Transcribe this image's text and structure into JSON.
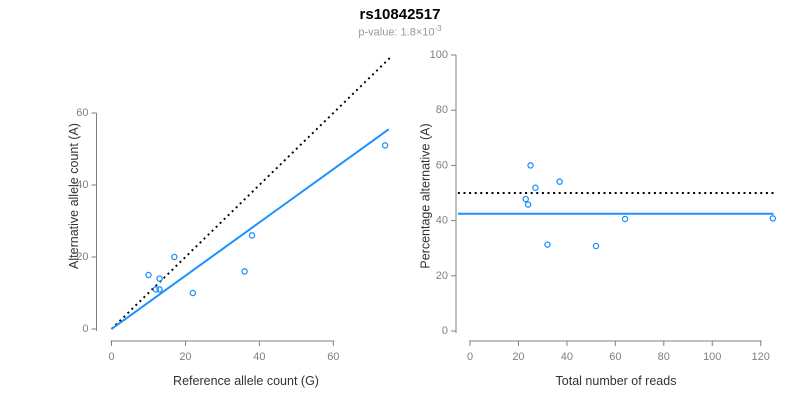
{
  "header": {
    "title": "rs10842517",
    "pvalue_text": "p-value: 1.8×10",
    "pvalue_exponent": "-3"
  },
  "colors": {
    "accent_blue": "#1E90FF",
    "dotted_line_black": "#000000",
    "axis_gray": "#808080",
    "tick_label_gray": "#808080",
    "axis_title": "#333333",
    "title_black": "#000000",
    "subtitle_gray": "#999999",
    "background": "#FFFFFF"
  },
  "chart_data": [
    {
      "type": "scatter",
      "name": "allele-counts",
      "title": "",
      "xlabel": "Reference allele count (G)",
      "ylabel": "Alternative allele count (A)",
      "xticks": [
        0,
        20,
        40,
        60
      ],
      "yticks": [
        0,
        20,
        40,
        60
      ],
      "xlim": [
        -3,
        75.5
      ],
      "ylim": [
        -3,
        77
      ],
      "grid": false,
      "legend": "none",
      "points": [
        [
          10,
          15
        ],
        [
          13,
          14
        ],
        [
          12,
          11
        ],
        [
          13,
          11
        ],
        [
          17,
          20
        ],
        [
          22,
          10
        ],
        [
          36,
          16
        ],
        [
          38,
          26
        ],
        [
          74,
          51
        ]
      ],
      "lines": [
        {
          "name": "expected-50pct-line",
          "style": "dotted",
          "color": "#000000",
          "x1": 0,
          "y1": 0,
          "x2": 75.3,
          "y2": 75.3
        },
        {
          "name": "observed-ratio-line",
          "style": "solid",
          "color": "#1E90FF",
          "x1": 0,
          "y1": 0,
          "x2": 75,
          "y2": 55.5
        }
      ]
    },
    {
      "type": "scatter",
      "name": "percentage-vs-coverage",
      "title": "",
      "xlabel": "Total number of reads",
      "ylabel": "Percentage alternative (A)",
      "xticks": [
        0,
        20,
        40,
        60,
        80,
        100,
        120
      ],
      "yticks": [
        0,
        20,
        40,
        60,
        80,
        100
      ],
      "xlim": [
        -5,
        126
      ],
      "ylim": [
        -4,
        104
      ],
      "grid": false,
      "legend": "none",
      "points": [
        [
          25,
          60
        ],
        [
          27,
          51.9
        ],
        [
          23,
          47.8
        ],
        [
          24,
          45.8
        ],
        [
          37,
          54.1
        ],
        [
          32,
          31.3
        ],
        [
          52,
          30.8
        ],
        [
          64,
          40.6
        ],
        [
          125,
          40.8
        ]
      ],
      "lines": [
        {
          "name": "expected-50pct-line",
          "style": "dotted",
          "color": "#000000",
          "x1": -5,
          "y1": 50,
          "x2": 125.3,
          "y2": 50
        },
        {
          "name": "observed-mean-line",
          "style": "solid",
          "color": "#1E90FF",
          "x1": -5,
          "y1": 42.5,
          "x2": 125.3,
          "y2": 42.5
        }
      ]
    }
  ]
}
